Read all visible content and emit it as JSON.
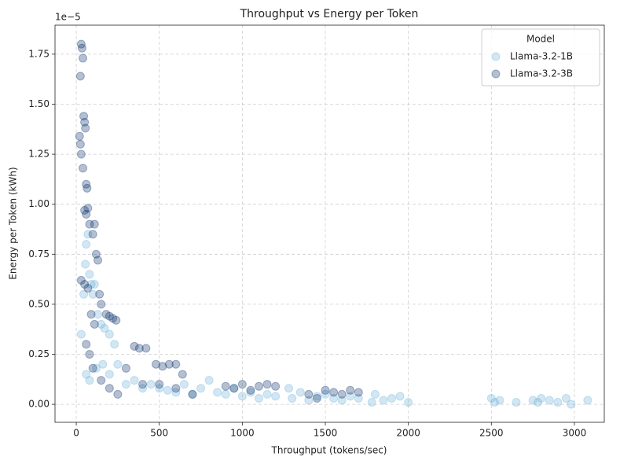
{
  "chart_data": {
    "type": "scatter",
    "title": "Throughput vs Energy per Token",
    "x_label": "Throughput (tokens/sec)",
    "y_label": "Energy per Token (kWh)",
    "y_offset_label": "1e−5",
    "legend_title": "Model",
    "legend_position": "upper right",
    "grid": true,
    "xlim": [
      -128,
      3180
    ],
    "ylim": [
      -0.09,
      1.895
    ],
    "xticks": [
      0,
      500,
      1000,
      1500,
      2000,
      2500,
      3000
    ],
    "yticks": [
      {
        "value": 0,
        "label": "0.00"
      },
      0.25,
      {
        "value": 0.5,
        "label": "0.50"
      },
      0.75,
      {
        "value": 1,
        "label": "1.00"
      },
      1.25,
      {
        "value": 1.5,
        "label": "1.50"
      },
      1.75
    ],
    "series": [
      {
        "name": "Llama-3.2-1B",
        "color": "#6baed6",
        "x": [
          30,
          45,
          55,
          60,
          70,
          80,
          90,
          100,
          110,
          130,
          150,
          170,
          200,
          230,
          250,
          60,
          80,
          120,
          160,
          200,
          300,
          350,
          400,
          450,
          500,
          550,
          600,
          650,
          700,
          750,
          800,
          850,
          900,
          950,
          1000,
          1050,
          1100,
          1150,
          1200,
          1280,
          1300,
          1350,
          1400,
          1450,
          1500,
          1550,
          1600,
          1650,
          1700,
          1780,
          1800,
          1850,
          1900,
          1950,
          2000,
          2500,
          2520,
          2550,
          2650,
          2750,
          2780,
          2800,
          2850,
          2900,
          2950,
          2980,
          3080
        ],
        "values": [
          0.35,
          0.55,
          0.7,
          0.8,
          0.85,
          0.65,
          0.6,
          0.55,
          0.6,
          0.45,
          0.4,
          0.38,
          0.35,
          0.3,
          0.2,
          0.15,
          0.12,
          0.18,
          0.2,
          0.15,
          0.1,
          0.12,
          0.08,
          0.1,
          0.08,
          0.07,
          0.06,
          0.1,
          0.05,
          0.08,
          0.12,
          0.06,
          0.05,
          0.08,
          0.04,
          0.06,
          0.03,
          0.05,
          0.04,
          0.08,
          0.03,
          0.06,
          0.02,
          0.04,
          0.05,
          0.03,
          0.02,
          0.04,
          0.03,
          0.01,
          0.05,
          0.02,
          0.03,
          0.04,
          0.01,
          0.03,
          0.01,
          0.02,
          0.01,
          0.02,
          0.01,
          0.03,
          0.02,
          0.01,
          0.03,
          0.0,
          0.02
        ]
      },
      {
        "name": "Llama-3.2-3B",
        "color": "#08306b",
        "x": [
          25,
          30,
          35,
          40,
          45,
          50,
          55,
          60,
          65,
          70,
          20,
          25,
          30,
          40,
          50,
          60,
          80,
          100,
          110,
          120,
          130,
          140,
          150,
          30,
          50,
          70,
          90,
          110,
          180,
          200,
          220,
          240,
          350,
          380,
          420,
          480,
          520,
          560,
          600,
          640,
          300,
          400,
          500,
          600,
          700,
          900,
          950,
          1000,
          1050,
          1100,
          1150,
          1200,
          1400,
          1450,
          1500,
          1550,
          1600,
          1650,
          1700,
          60,
          80,
          100,
          150,
          200,
          250
        ],
        "values": [
          1.64,
          1.8,
          1.78,
          1.73,
          1.44,
          1.41,
          1.38,
          1.1,
          1.08,
          0.98,
          1.34,
          1.3,
          1.25,
          1.18,
          0.97,
          0.95,
          0.9,
          0.85,
          0.9,
          0.75,
          0.72,
          0.55,
          0.5,
          0.62,
          0.6,
          0.58,
          0.45,
          0.4,
          0.45,
          0.44,
          0.43,
          0.42,
          0.29,
          0.28,
          0.28,
          0.2,
          0.19,
          0.2,
          0.2,
          0.15,
          0.18,
          0.1,
          0.1,
          0.08,
          0.05,
          0.09,
          0.08,
          0.1,
          0.07,
          0.09,
          0.1,
          0.09,
          0.05,
          0.03,
          0.07,
          0.06,
          0.05,
          0.07,
          0.06,
          0.3,
          0.25,
          0.18,
          0.12,
          0.08,
          0.05
        ]
      }
    ]
  }
}
